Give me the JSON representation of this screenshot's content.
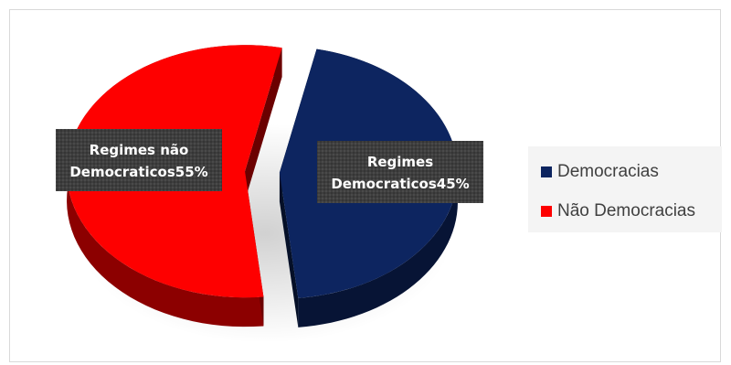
{
  "chart_data": {
    "type": "pie",
    "style": "3d-exploded",
    "title": "",
    "slices": [
      {
        "name": "Democracias",
        "label_line1": "Regimes",
        "label_line2": "Democraticos45%",
        "value": 45,
        "color": "#0d2560"
      },
      {
        "name": "Não Democracias",
        "label_line1": "Regimes não",
        "label_line2": "Democraticos55%",
        "value": 55,
        "color": "#fe0000"
      }
    ],
    "legend": {
      "position": "right",
      "items": [
        {
          "label": "Democracias",
          "color": "#0d2560"
        },
        {
          "label": "Não Democracias",
          "color": "#fe0000"
        }
      ]
    }
  }
}
